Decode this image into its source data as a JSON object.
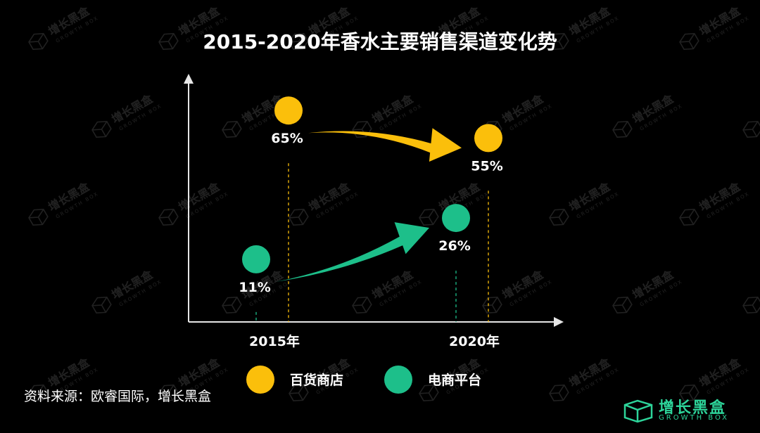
{
  "chart_data": {
    "type": "scatter",
    "title": "2015-2020年香水主要销售渠道变化势",
    "categories": [
      "2015年",
      "2020年"
    ],
    "series": [
      {
        "name": "百货商店",
        "color": "#fbbf0b",
        "values": [
          65,
          55
        ],
        "labels": [
          "65%",
          "55%"
        ]
      },
      {
        "name": "电商平台",
        "color": "#1dbf8a",
        "values": [
          11,
          26
        ],
        "labels": [
          "11%",
          "26%"
        ]
      }
    ],
    "xlabel": "",
    "ylabel": "",
    "grid": false,
    "legend_position": "bottom",
    "annotations": [
      "arrow 65% → 55%",
      "arrow 11% → 26%"
    ]
  },
  "source_text": "资料来源：欧睿国际，增长黑盒",
  "logo": {
    "name": "增长黑盒",
    "sub": "GROWTH BOX"
  },
  "watermark": {
    "name": "增长黑盒",
    "sub": "GROWTH BOX"
  },
  "colors": {
    "axis": "#e6e6e6",
    "background": "#000000",
    "accent": "#2dd49a"
  }
}
